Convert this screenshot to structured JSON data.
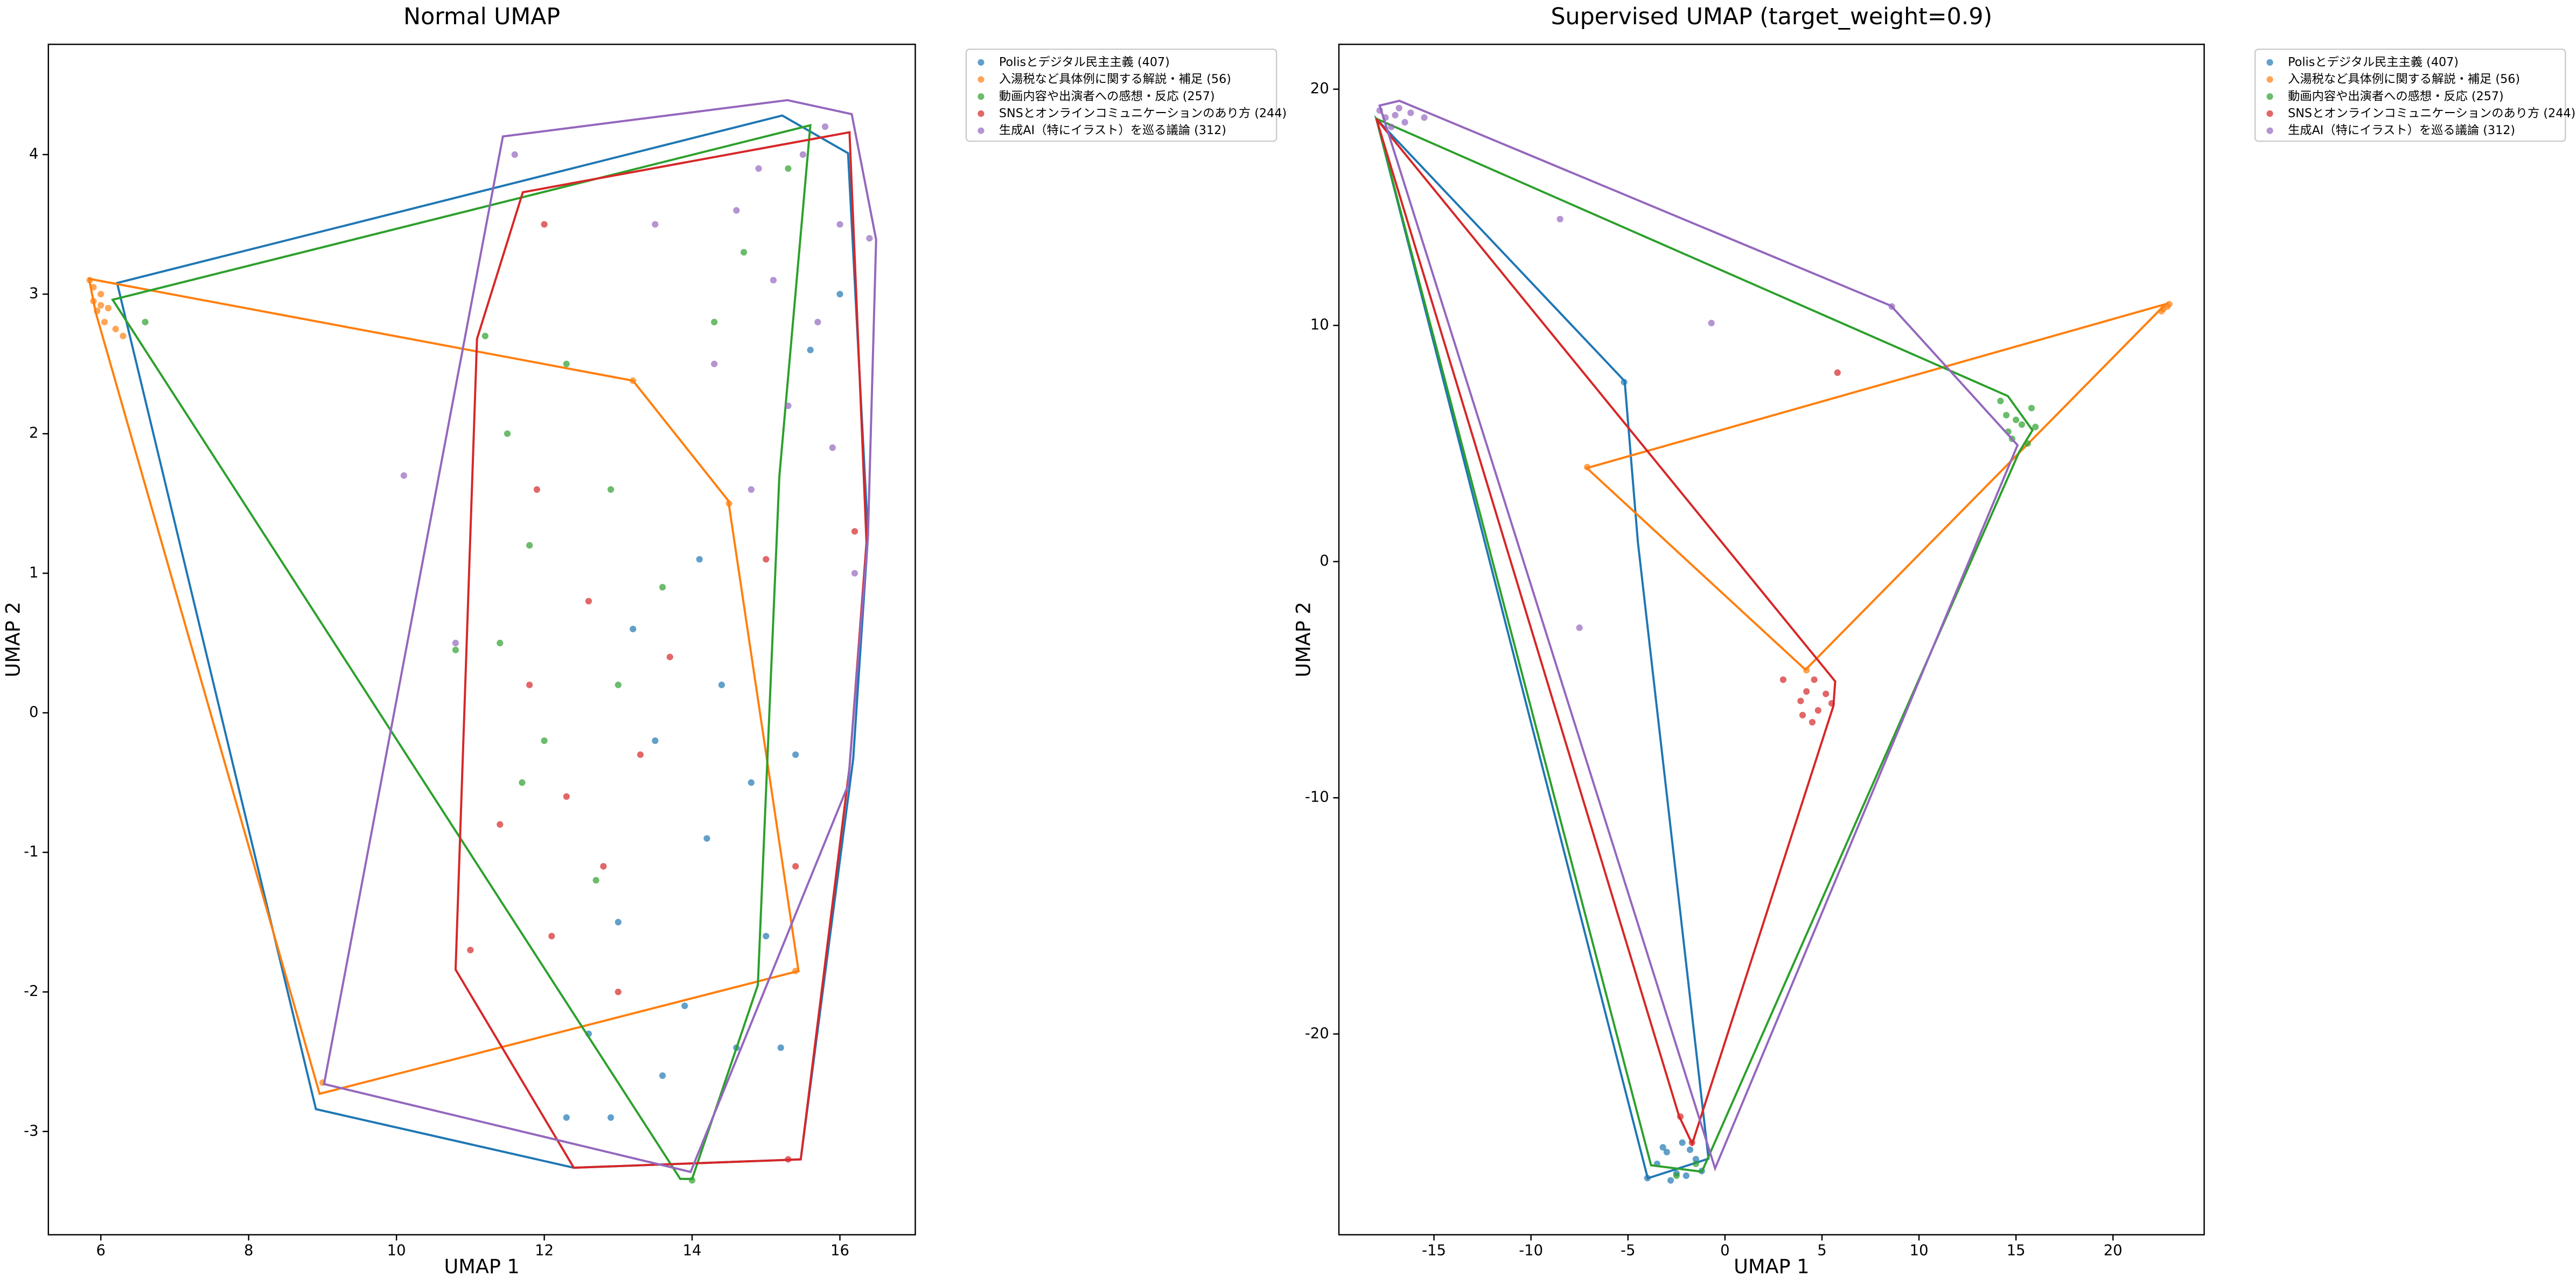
{
  "chart_data": [
    {
      "type": "scatter",
      "title": "Normal UMAP",
      "xlabel": "UMAP 1",
      "ylabel": "UMAP 2",
      "xlim": [
        5.29,
        17.02
      ],
      "ylim": [
        -3.74,
        4.79
      ],
      "xticks": [
        6,
        8,
        10,
        12,
        14,
        16
      ],
      "yticks": [
        -3,
        -2,
        -1,
        0,
        1,
        2,
        3,
        4
      ],
      "series": [
        {
          "name": "Polisとデジタル民主主義 (407)",
          "color": "#1f77b4",
          "x": [
            13.5,
            14.2,
            13.0,
            14.8,
            12.6,
            13.9,
            15.0,
            12.9,
            14.4,
            15.4,
            16.0,
            15.6,
            13.6,
            14.6,
            12.3,
            15.2,
            14.1,
            13.2
          ],
          "y": [
            -0.2,
            -0.9,
            -1.5,
            -0.5,
            -2.3,
            -2.1,
            -1.6,
            -2.9,
            0.2,
            -0.3,
            3.0,
            2.6,
            -2.6,
            -2.4,
            -2.9,
            -2.4,
            1.1,
            0.6
          ],
          "hull_x": [
            6.22,
            15.22,
            16.11,
            16.38,
            16.18,
            15.47,
            12.4,
            8.91
          ],
          "hull_y": [
            3.08,
            4.28,
            4.01,
            1.27,
            -0.33,
            -3.2,
            -3.26,
            -2.84
          ]
        },
        {
          "name": "入湯税など具体例に関する解説・補足 (56)",
          "color": "#ff7f0e",
          "x": [
            5.85,
            5.9,
            6.0,
            5.95,
            6.1,
            6.05,
            5.9,
            6.2,
            6.3,
            6.0,
            9.0,
            13.2,
            15.4,
            14.5
          ],
          "y": [
            3.1,
            2.95,
            3.0,
            2.88,
            2.9,
            2.8,
            3.05,
            2.75,
            2.7,
            2.92,
            -2.65,
            2.38,
            -1.85,
            1.5
          ],
          "hull_x": [
            5.84,
            13.2,
            14.49,
            15.44,
            8.96,
            5.93
          ],
          "hull_y": [
            3.11,
            2.38,
            1.52,
            -1.85,
            -2.73,
            2.87
          ]
        },
        {
          "name": "動画内容や出演者への感想・反応 (257)",
          "color": "#2ca02c",
          "x": [
            11.5,
            12.3,
            11.8,
            12.9,
            13.6,
            11.4,
            12.0,
            13.0,
            14.3,
            14.7,
            10.8,
            11.7,
            12.7,
            14.0,
            15.3,
            11.2,
            6.6
          ],
          "y": [
            2.0,
            2.5,
            1.2,
            1.6,
            0.9,
            0.5,
            -0.2,
            0.2,
            2.8,
            3.3,
            0.45,
            -0.5,
            -1.2,
            -3.35,
            3.9,
            2.7,
            2.8
          ],
          "hull_x": [
            6.16,
            15.6,
            15.18,
            14.89,
            14.0,
            13.84
          ],
          "hull_y": [
            2.96,
            4.21,
            1.69,
            -1.95,
            -3.34,
            -3.34
          ]
        },
        {
          "name": "SNSとオンラインコミュニケーションのあり方 (244)",
          "color": "#d62728",
          "x": [
            11.8,
            12.3,
            12.8,
            13.3,
            12.1,
            11.4,
            13.7,
            12.6,
            11.9,
            13.0,
            15.0,
            15.4,
            12.0,
            11.0,
            15.3,
            16.2
          ],
          "y": [
            0.2,
            -0.6,
            -1.1,
            -0.3,
            -1.6,
            -0.8,
            0.4,
            0.8,
            1.6,
            -2.0,
            1.1,
            -1.1,
            3.5,
            -1.7,
            -3.2,
            1.3
          ],
          "hull_x": [
            11.09,
            11.71,
            16.13,
            16.36,
            16.13,
            15.47,
            12.4,
            10.8
          ],
          "hull_y": [
            2.68,
            3.73,
            4.16,
            1.22,
            -0.39,
            -3.2,
            -3.26,
            -1.84
          ]
        },
        {
          "name": "生成AI（特にイラスト）を巡る議論 (312)",
          "color": "#9467bd",
          "x": [
            14.6,
            15.1,
            15.7,
            14.3,
            15.9,
            14.9,
            15.3,
            16.0,
            14.8,
            15.5,
            11.6,
            13.5,
            16.2,
            16.4,
            15.8,
            10.1,
            10.8
          ],
          "y": [
            3.6,
            3.1,
            2.8,
            2.5,
            1.9,
            3.9,
            2.2,
            3.5,
            1.6,
            4.0,
            4.0,
            3.5,
            1.0,
            3.4,
            4.2,
            1.7,
            0.5
          ],
          "hull_x": [
            11.44,
            15.29,
            16.16,
            16.49,
            16.38,
            16.11,
            13.98,
            9.02
          ],
          "hull_y": [
            4.13,
            4.39,
            4.29,
            3.39,
            1.27,
            -0.52,
            -3.29,
            -2.66
          ]
        }
      ]
    },
    {
      "type": "scatter",
      "title": "Supervised UMAP (target_weight=0.9)",
      "xlabel": "UMAP 1",
      "ylabel": "UMAP 2",
      "xlim": [
        -19.9,
        24.7
      ],
      "ylim": [
        -28.5,
        21.9
      ],
      "xticks": [
        -15,
        -10,
        -5,
        0,
        5,
        10,
        15,
        20
      ],
      "yticks": [
        -20,
        -10,
        0,
        10,
        20
      ],
      "series": [
        {
          "name": "Polisとデジタル民主主義 (407)",
          "color": "#1f77b4",
          "x": [
            -3,
            -2,
            -1.5,
            -2.8,
            -2.2,
            -3.5,
            -1.2,
            -2.5,
            -1.8,
            -3.2,
            -5.2,
            -4.0
          ],
          "y": [
            -25,
            -26,
            -25.3,
            -26.2,
            -24.6,
            -25.5,
            -25.8,
            -25.9,
            -24.9,
            -24.8,
            7.6,
            -26.1
          ],
          "hull_x": [
            -17.97,
            -5.17,
            -4.49,
            -0.85,
            -3.98
          ],
          "hull_y": [
            18.75,
            7.64,
            0.83,
            -25.28,
            -26.11
          ]
        },
        {
          "name": "入湯税など具体例に関する解説・補足 (56)",
          "color": "#ff7f0e",
          "x": [
            22.8,
            22.6,
            22.9,
            22.5,
            -7.1,
            4.2
          ],
          "y": [
            10.8,
            10.7,
            10.9,
            10.6,
            4.0,
            -4.6
          ],
          "hull_x": [
            -7.12,
            22.71,
            4.15
          ],
          "hull_y": [
            3.96,
            10.9,
            -4.58
          ]
        },
        {
          "name": "動画内容や出演者への感想・反応 (257)",
          "color": "#2ca02c",
          "x": [
            14.5,
            15.3,
            15.8,
            14.8,
            15.6,
            14.2,
            15.0,
            16.0,
            14.6,
            -1.5,
            -2.5
          ],
          "y": [
            6.2,
            5.8,
            6.5,
            5.2,
            5.0,
            6.8,
            6.0,
            5.7,
            5.5,
            -25.5,
            -26
          ],
          "hull_x": [
            -17.97,
            14.58,
            15.85,
            15.17,
            -1.19,
            -3.81
          ],
          "hull_y": [
            18.75,
            7.01,
            5.56,
            4.65,
            -25.83,
            -25.56
          ]
        },
        {
          "name": "SNSとオンラインコミュニケーションのあり方 (244)",
          "color": "#d62728",
          "x": [
            4.2,
            4.8,
            4.5,
            3.9,
            5.2,
            4.6,
            4.0,
            5.5,
            3.0,
            -2.3,
            -1.7,
            5.8
          ],
          "y": [
            -5.5,
            -6.3,
            -6.8,
            -5.9,
            -5.6,
            -5.0,
            -6.5,
            -6.0,
            -5.0,
            -23.5,
            -24.6,
            8.0
          ],
          "hull_x": [
            -17.97,
            5.68,
            5.59,
            -1.69,
            -2.37
          ],
          "hull_y": [
            18.75,
            -5.07,
            -6.11,
            -24.65,
            -23.47
          ]
        },
        {
          "name": "生成AI（特にイラスト）を巡る議論 (312)",
          "color": "#9467bd",
          "x": [
            -17.5,
            -16.8,
            -17.2,
            -16.2,
            -17.8,
            -16.5,
            -17,
            -15.5,
            -8.5,
            -7.5,
            -0.7,
            8.6
          ],
          "y": [
            18.8,
            19.2,
            18.4,
            19.0,
            19.1,
            18.6,
            18.9,
            18.8,
            14.5,
            -2.8,
            10.1,
            10.8
          ],
          "hull_x": [
            -17.8,
            -16.78,
            8.56,
            15.08,
            -0.51
          ],
          "hull_y": [
            19.31,
            19.51,
            10.83,
            4.93,
            -25.69
          ]
        }
      ]
    }
  ]
}
